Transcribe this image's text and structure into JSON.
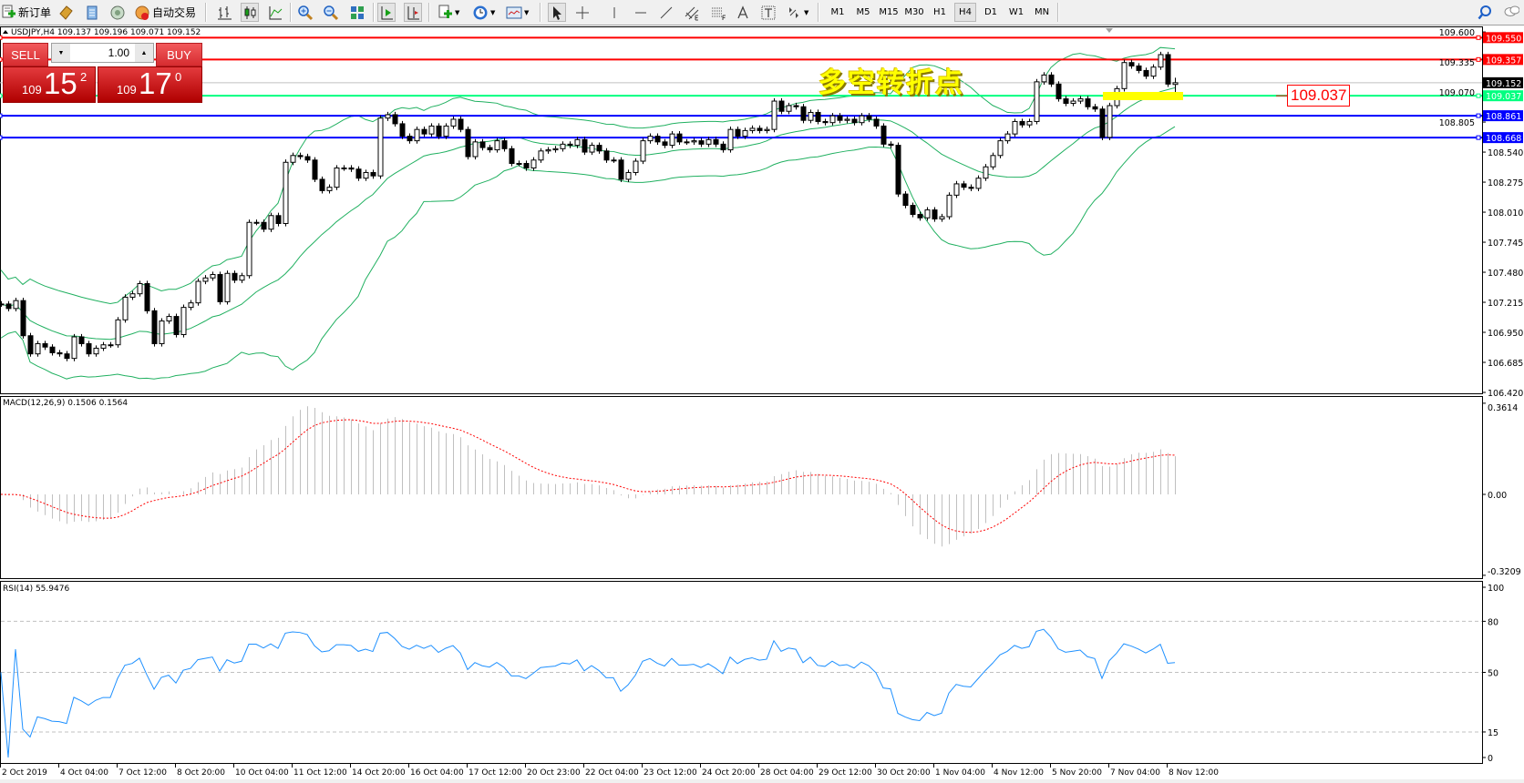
{
  "toolbar": {
    "items": [
      {
        "name": "new-order-button",
        "icon": "new-order",
        "label": "新订单",
        "x": 0
      },
      {
        "name": "market-watch-button",
        "icon": "market-watch",
        "x": 63
      },
      {
        "name": "data-window-button",
        "icon": "data-window",
        "x": 92
      },
      {
        "name": "navigator-button",
        "icon": "navigator",
        "x": 120
      },
      {
        "name": "auto-trading-button",
        "icon": "auto-trading",
        "label": "自动交易",
        "x": 147
      },
      {
        "sep": true,
        "x": 225
      },
      {
        "name": "bar-chart-button",
        "icon": "bar-chart",
        "x": 237
      },
      {
        "name": "candlestick-button",
        "icon": "candlestick",
        "x": 264,
        "active": true
      },
      {
        "name": "line-chart-button",
        "icon": "line-chart",
        "x": 293
      },
      {
        "sep": true,
        "x": 318
      },
      {
        "name": "zoom-in-button",
        "icon": "zoom-in",
        "x": 326
      },
      {
        "name": "zoom-out-button",
        "icon": "zoom-out",
        "x": 354
      },
      {
        "name": "tile-windows-button",
        "icon": "tile",
        "x": 383
      },
      {
        "sep": true,
        "x": 409
      },
      {
        "name": "auto-scroll-button",
        "icon": "auto-scroll",
        "x": 414,
        "active": true
      },
      {
        "name": "chart-shift-button",
        "icon": "chart-shift",
        "x": 443,
        "active": true
      },
      {
        "sep": true,
        "x": 470
      },
      {
        "name": "indicators-button",
        "icon": "indicators",
        "x": 479,
        "dropdown": true
      },
      {
        "name": "periods-button",
        "icon": "clock",
        "x": 518,
        "dropdown": true
      },
      {
        "name": "templates-button",
        "icon": "templates",
        "x": 555,
        "dropdown": true
      },
      {
        "sep": true,
        "x": 592
      },
      {
        "name": "cursor-button",
        "icon": "cursor",
        "x": 601,
        "active": true
      },
      {
        "name": "crosshair-button",
        "icon": "crosshair",
        "x": 630
      },
      {
        "name": "vertical-line-button",
        "icon": "vline",
        "x": 665
      },
      {
        "name": "horizontal-line-button",
        "icon": "hline",
        "x": 694
      },
      {
        "name": "trendline-button",
        "icon": "trendline",
        "x": 722
      },
      {
        "name": "equidistant-channel-button",
        "icon": "channel",
        "x": 750
      },
      {
        "name": "fibonacci-button",
        "icon": "fibo",
        "x": 779
      },
      {
        "name": "text-button",
        "icon": "text",
        "x": 806
      },
      {
        "name": "text-label-button",
        "icon": "label",
        "x": 834
      },
      {
        "name": "arrows-button",
        "icon": "arrows",
        "x": 862,
        "dropdown": true
      },
      {
        "sep": true,
        "x": 897
      }
    ],
    "periods": [
      "M1",
      "M5",
      "M15",
      "M30",
      "H1",
      "H4",
      "D1",
      "W1",
      "MN"
    ],
    "active_period": "H4",
    "right": [
      {
        "name": "search-button",
        "icon": "search"
      },
      {
        "name": "chat-button",
        "icon": "chat"
      }
    ]
  },
  "chart": {
    "title": "USDJPY,H4  109.137 109.196 109.071 109.152",
    "symbol": "USDJPY",
    "timeframe": "H4",
    "bid": "109.152",
    "annotation": "多空转折点",
    "price_label": "109.037",
    "colors": {
      "bull_body": "#ffffff",
      "bear_body": "#000000",
      "bands": "#20b060",
      "macd_hist": "#c0c0c0",
      "macd_signal": "#ff0000",
      "rsi": "#1e90ff",
      "annotation": "#ffff00",
      "highlight": "#ffff00"
    },
    "hlines": [
      {
        "price": 109.55,
        "label": "109.550",
        "color": "#ff0000"
      },
      {
        "price": 109.357,
        "label": "109.357",
        "color": "#ff0000"
      },
      {
        "price": 109.152,
        "label": "109.152",
        "color": "#c0c0c0",
        "label_bg": "#000000",
        "bid": true
      },
      {
        "price": 109.037,
        "label": "109.037",
        "color": "#00ff7f"
      },
      {
        "price": 108.861,
        "label": "108.861",
        "color": "#0000ff"
      },
      {
        "price": 108.668,
        "label": "108.668",
        "color": "#0000ff"
      }
    ],
    "price_ticks": [
      "106.420",
      "106.685",
      "106.950",
      "107.215",
      "107.480",
      "107.745",
      "108.010",
      "108.275",
      "108.540",
      "108.805",
      "109.070",
      "109.335",
      "109.600"
    ]
  },
  "trade_panel": {
    "sell_label": "SELL",
    "buy_label": "BUY",
    "lot": "1.00",
    "sell_price": {
      "big_figure": "109",
      "pips": "15",
      "fraction": "2"
    },
    "buy_price": {
      "big_figure": "109",
      "pips": "17",
      "fraction": "0"
    }
  },
  "macd": {
    "label": "MACD(12,26,9) 0.1506 0.1564",
    "params": [
      12,
      26,
      9
    ],
    "ticks": [
      "0.3614",
      "0.00",
      "-0.3209"
    ]
  },
  "rsi": {
    "label": "RSI(14) 55.9476",
    "period": 14,
    "ticks": [
      "100",
      "80",
      "50",
      "15",
      "0"
    ],
    "levels": [
      80,
      50,
      15
    ]
  },
  "time_axis": [
    "2 Oct 2019",
    "4 Oct 04:00",
    "7 Oct 12:00",
    "8 Oct 20:00",
    "10 Oct 04:00",
    "11 Oct 12:00",
    "14 Oct 20:00",
    "16 Oct 04:00",
    "17 Oct 12:00",
    "20 Oct 23:00",
    "22 Oct 04:00",
    "23 Oct 12:00",
    "24 Oct 20:00",
    "28 Oct 04:00",
    "29 Oct 12:00",
    "30 Oct 20:00",
    "1 Nov 04:00",
    "4 Nov 12:00",
    "5 Nov 20:00",
    "7 Nov 04:00",
    "8 Nov 12:00"
  ],
  "chart_data": {
    "type": "candlestick",
    "indicators": [
      "Bollinger Bands(20,2)",
      "MACD(12,26,9)",
      "RSI(14)"
    ],
    "ylim": [
      106.42,
      109.6
    ],
    "close": [
      107.2,
      107.16,
      107.23,
      106.92,
      106.76,
      106.85,
      106.82,
      106.77,
      106.76,
      106.72,
      106.91,
      106.85,
      106.76,
      106.81,
      106.84,
      106.84,
      107.06,
      107.26,
      107.29,
      107.38,
      107.14,
      106.85,
      107.05,
      107.09,
      106.93,
      107.17,
      107.21,
      107.4,
      107.43,
      107.46,
      107.22,
      107.47,
      107.41,
      107.45,
      107.92,
      107.92,
      107.86,
      107.98,
      107.91,
      108.45,
      108.51,
      108.5,
      108.47,
      108.3,
      108.2,
      108.23,
      108.4,
      108.4,
      108.39,
      108.31,
      108.36,
      108.33,
      108.84,
      108.87,
      108.79,
      108.68,
      108.64,
      108.74,
      108.7,
      108.77,
      108.68,
      108.77,
      108.83,
      108.74,
      108.5,
      108.63,
      108.58,
      108.56,
      108.64,
      108.57,
      108.44,
      108.44,
      108.4,
      108.47,
      108.55,
      108.56,
      108.57,
      108.61,
      108.6,
      108.65,
      108.54,
      108.6,
      108.55,
      108.47,
      108.47,
      108.3,
      108.36,
      108.46,
      108.64,
      108.68,
      108.63,
      108.6,
      108.7,
      108.63,
      108.63,
      108.64,
      108.61,
      108.65,
      108.61,
      108.56,
      108.74,
      108.68,
      108.73,
      108.75,
      108.73,
      108.74,
      108.99,
      108.9,
      108.95,
      108.94,
      108.82,
      108.89,
      108.81,
      108.8,
      108.86,
      108.82,
      108.83,
      108.8,
      108.86,
      108.83,
      108.77,
      108.61,
      108.6,
      108.17,
      108.07,
      107.99,
      107.96,
      108.03,
      107.95,
      107.97,
      108.16,
      108.26,
      108.23,
      108.22,
      108.31,
      108.41,
      108.51,
      108.64,
      108.7,
      108.81,
      108.78,
      108.81,
      109.16,
      109.22,
      109.14,
      109.01,
      108.97,
      108.99,
      109.01,
      108.94,
      108.92,
      108.67,
      108.95,
      109.1,
      109.33,
      109.3,
      109.26,
      109.21,
      109.29,
      109.4,
      109.14,
      109.152
    ],
    "last_bar": {
      "open": 109.137,
      "high": 109.196,
      "low": 109.071,
      "close": 109.152
    }
  }
}
